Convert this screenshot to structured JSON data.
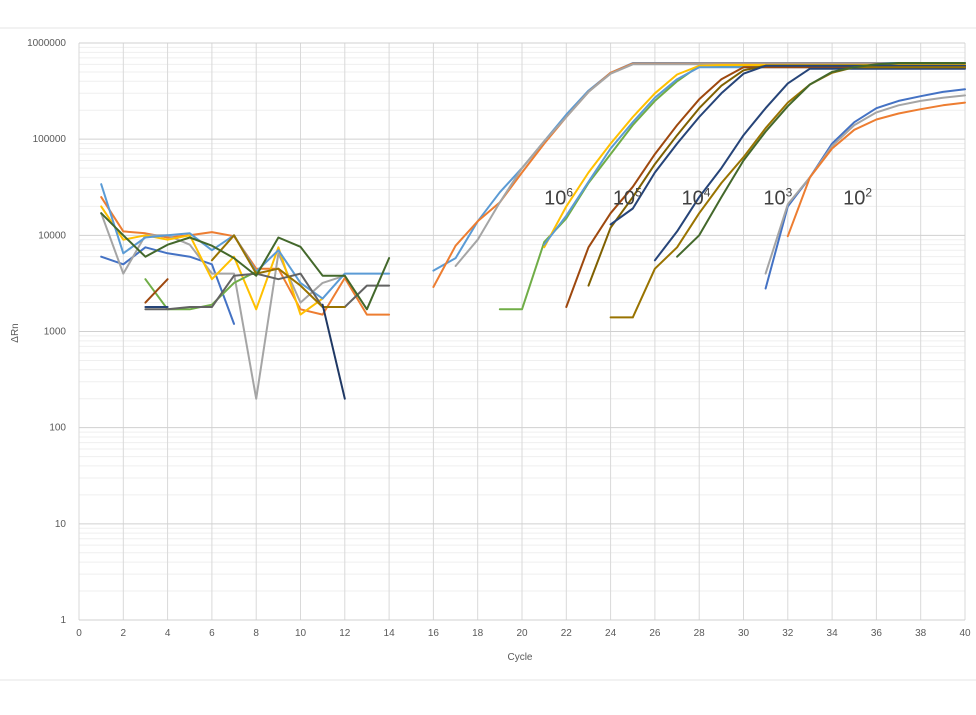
{
  "chart_data": {
    "type": "line",
    "title": "",
    "xlabel": "Cycle",
    "ylabel": "ΔRn",
    "xlim": [
      0,
      40
    ],
    "ylim": [
      1,
      1000000
    ],
    "yscale": "log",
    "grid": true,
    "legend": "none",
    "x_ticks": [
      "0",
      "2",
      "4",
      "6",
      "8",
      "10",
      "12",
      "14",
      "16",
      "18",
      "20",
      "22",
      "24",
      "26",
      "28",
      "30",
      "32",
      "34",
      "36",
      "38",
      "40"
    ],
    "y_ticks": [
      "1",
      "10",
      "100",
      "1000",
      "10000",
      "100000",
      "1000000"
    ],
    "annotations": [
      {
        "base": "10",
        "exp": "6",
        "x": 21,
        "y": 21000
      },
      {
        "base": "10",
        "exp": "5",
        "x": 24.1,
        "y": 21000
      },
      {
        "base": "10",
        "exp": "4",
        "x": 27.2,
        "y": 21000
      },
      {
        "base": "10",
        "exp": "3",
        "x": 30.9,
        "y": 21000
      },
      {
        "base": "10",
        "exp": "2",
        "x": 34.5,
        "y": 21000
      }
    ],
    "series": [
      {
        "color": "#4472C4",
        "x": [
          1,
          2,
          3,
          4,
          5,
          6,
          7
        ],
        "y": [
          6000,
          5000,
          7500,
          6500,
          6000,
          5000,
          1200
        ]
      },
      {
        "color": "#ED7D31",
        "x": [
          1,
          2,
          3,
          4,
          5,
          6,
          7,
          8,
          9,
          10,
          11,
          12,
          13,
          14
        ],
        "y": [
          25000,
          11000,
          10500,
          9500,
          10000,
          10800,
          9800,
          4500,
          4500,
          1700,
          1500,
          3600,
          1500,
          1500
        ]
      },
      {
        "color": "#A5A5A5",
        "x": [
          1,
          2,
          3,
          4,
          5,
          6,
          7,
          8,
          9,
          10,
          11,
          12
        ],
        "y": [
          17000,
          4000,
          10000,
          10000,
          8000,
          4000,
          4000,
          200,
          6500,
          2000,
          3200,
          3800
        ]
      },
      {
        "color": "#FFC000",
        "x": [
          1,
          2,
          3,
          4,
          5,
          6,
          7,
          8,
          9,
          10,
          11
        ],
        "y": [
          20000,
          9000,
          10000,
          9000,
          10000,
          3500,
          6000,
          1700,
          7500,
          1500,
          2200
        ]
      },
      {
        "color": "#5B9BD5",
        "x": [
          1,
          2,
          3,
          4,
          5,
          6,
          7,
          8,
          9,
          10,
          11,
          12,
          13,
          14
        ],
        "y": [
          34000,
          6500,
          9500,
          10000,
          10500,
          7000,
          10000,
          4200,
          7000,
          3200,
          2200,
          4000,
          4000,
          4000
        ]
      },
      {
        "color": "#70AD47",
        "x": [
          3,
          4,
          5,
          6,
          7,
          8
        ],
        "y": [
          3500,
          1700,
          1700,
          1900,
          3200,
          4200
        ]
      },
      {
        "color": "#264478",
        "x": [
          3,
          4
        ],
        "y": [
          1800,
          1800
        ]
      },
      {
        "color": "#9E480E",
        "x": [
          3,
          4
        ],
        "y": [
          2000,
          3500
        ]
      },
      {
        "color": "#636363",
        "x": [
          3,
          4,
          5,
          6,
          7,
          8,
          9,
          10,
          11,
          12,
          13,
          14
        ],
        "y": [
          1700,
          1700,
          1800,
          1800,
          3800,
          4000,
          3500,
          4000,
          1800,
          1800,
          3000,
          3000
        ]
      },
      {
        "color": "#997300",
        "x": [
          6,
          7,
          8,
          9,
          10,
          11,
          12
        ],
        "y": [
          5500,
          10000,
          4000,
          4500,
          3000,
          1800,
          1800
        ]
      },
      {
        "color": "#43682B",
        "x": [
          1,
          2,
          3,
          4,
          5,
          6,
          7,
          8,
          9,
          10,
          11,
          12,
          13,
          14
        ],
        "y": [
          17000,
          10000,
          6000,
          8000,
          9500,
          7800,
          5800,
          3800,
          9500,
          7600,
          3800,
          3800,
          1700,
          5800
        ]
      },
      {
        "color": "#1F3864",
        "x": [
          11,
          12
        ],
        "y": [
          1900,
          200
        ]
      },
      {
        "color": "#5B9BD5",
        "x": [
          16,
          17,
          18,
          19,
          20,
          21,
          22,
          23,
          24,
          25,
          40
        ],
        "y": [
          4300,
          5800,
          14000,
          28000,
          50000,
          95000,
          180000,
          320000,
          490000,
          620000,
          620000
        ]
      },
      {
        "color": "#ED7D31",
        "x": [
          16,
          17,
          18,
          19,
          20,
          21,
          22,
          23,
          24,
          25,
          40
        ],
        "y": [
          2900,
          7800,
          14000,
          22000,
          45000,
          90000,
          170000,
          310000,
          490000,
          610000,
          610000
        ]
      },
      {
        "color": "#A5A5A5",
        "x": [
          17,
          18,
          19,
          20,
          21,
          22,
          23,
          24,
          25,
          40
        ],
        "y": [
          4800,
          9000,
          22000,
          50000,
          95000,
          170000,
          310000,
          480000,
          600000,
          600000
        ]
      },
      {
        "color": "#70AD47",
        "x": [
          19,
          20,
          21,
          22,
          23,
          24,
          25,
          26,
          27,
          28,
          40
        ],
        "y": [
          1700,
          1700,
          8500,
          15000,
          35000,
          70000,
          140000,
          250000,
          400000,
          580000,
          580000
        ]
      },
      {
        "color": "#FFC000",
        "x": [
          21,
          22,
          23,
          24,
          25,
          26,
          27,
          28,
          29,
          40
        ],
        "y": [
          7500,
          20000,
          45000,
          90000,
          170000,
          300000,
          470000,
          580000,
          590000,
          590000
        ]
      },
      {
        "color": "#5B9BD5",
        "x": [
          21,
          22,
          23,
          24,
          25,
          26,
          27,
          28,
          40
        ],
        "y": [
          8000,
          16000,
          36000,
          80000,
          150000,
          270000,
          420000,
          560000,
          560000
        ]
      },
      {
        "color": "#9E480E",
        "x": [
          22,
          23,
          24,
          25,
          26,
          27,
          28,
          29,
          30,
          40
        ],
        "y": [
          1800,
          7500,
          17000,
          32000,
          70000,
          140000,
          260000,
          420000,
          560000,
          560000
        ]
      },
      {
        "color": "#7F6000",
        "x": [
          23,
          24,
          25,
          26,
          27,
          28,
          29,
          30,
          31,
          40
        ],
        "y": [
          3000,
          12000,
          25000,
          55000,
          110000,
          210000,
          360000,
          520000,
          580000,
          580000
        ]
      },
      {
        "color": "#264478",
        "x": [
          24,
          25,
          26,
          27,
          28,
          29,
          30,
          31,
          40
        ],
        "y": [
          13000,
          19000,
          45000,
          90000,
          170000,
          300000,
          480000,
          580000,
          580000
        ]
      },
      {
        "color": "#264478",
        "x": [
          26,
          27,
          28,
          29,
          30,
          31,
          32,
          33,
          40
        ],
        "y": [
          5500,
          11000,
          25000,
          50000,
          110000,
          210000,
          380000,
          540000,
          540000
        ]
      },
      {
        "color": "#997300",
        "x": [
          24,
          25,
          26,
          27,
          28,
          29,
          30,
          31,
          32,
          33,
          34,
          35,
          36,
          40
        ],
        "y": [
          1400,
          1400,
          4500,
          7500,
          17000,
          35000,
          65000,
          130000,
          240000,
          370000,
          490000,
          560000,
          560000,
          560000
        ]
      },
      {
        "color": "#43682B",
        "x": [
          27,
          28,
          29,
          30,
          31,
          32,
          33,
          34,
          35,
          36,
          37,
          40
        ],
        "y": [
          6000,
          10000,
          25000,
          60000,
          120000,
          220000,
          370000,
          500000,
          560000,
          600000,
          620000,
          620000
        ]
      },
      {
        "color": "#4472C4",
        "x": [
          31,
          32,
          33,
          34,
          35,
          36,
          37,
          38,
          39,
          40
        ],
        "y": [
          2800,
          20000,
          40000,
          90000,
          150000,
          210000,
          250000,
          280000,
          310000,
          330000
        ]
      },
      {
        "color": "#A5A5A5",
        "x": [
          31,
          32,
          33,
          34,
          35,
          36,
          37,
          38,
          39,
          40
        ],
        "y": [
          4000,
          21000,
          40000,
          85000,
          140000,
          190000,
          225000,
          250000,
          270000,
          285000
        ]
      },
      {
        "color": "#ED7D31",
        "x": [
          32,
          33,
          34,
          35,
          36,
          37,
          38,
          39,
          40
        ],
        "y": [
          9800,
          40000,
          80000,
          125000,
          160000,
          185000,
          205000,
          225000,
          240000
        ]
      }
    ]
  }
}
